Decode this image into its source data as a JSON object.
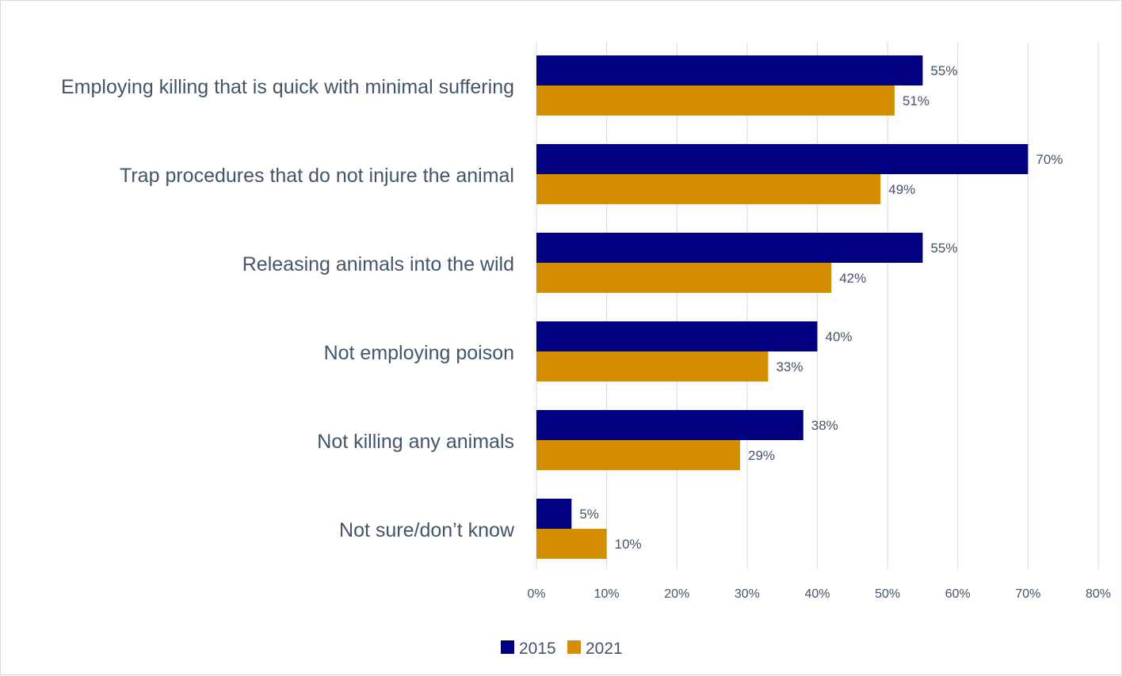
{
  "chart_data": {
    "type": "bar",
    "orientation": "horizontal",
    "categories": [
      "Employing killing that is quick with minimal suffering",
      "Trap procedures that do not injure the animal",
      "Releasing animals into the wild",
      "Not employing poison",
      "Not killing any animals",
      "Not sure/don’t know"
    ],
    "series": [
      {
        "name": "2015",
        "color": "#000080",
        "values": [
          55,
          70,
          55,
          40,
          38,
          5
        ],
        "labels": [
          "55%",
          "70%",
          "55%",
          "40%",
          "38%",
          "5%"
        ]
      },
      {
        "name": "2021",
        "color": "#d48e00",
        "values": [
          51,
          49,
          42,
          33,
          29,
          10
        ],
        "labels": [
          "51%",
          "49%",
          "42%",
          "33%",
          "29%",
          "10%"
        ]
      }
    ],
    "xlim": [
      0,
      80
    ],
    "x_ticks": [
      0,
      10,
      20,
      30,
      40,
      50,
      60,
      70,
      80
    ],
    "x_tick_labels": [
      "0%",
      "10%",
      "20%",
      "30%",
      "40%",
      "50%",
      "60%",
      "70%",
      "80%"
    ],
    "gridlines": "vertical",
    "legend": {
      "position": "bottom",
      "entries": [
        "2015",
        "2021"
      ]
    },
    "title": "",
    "xlabel": "",
    "ylabel": ""
  }
}
